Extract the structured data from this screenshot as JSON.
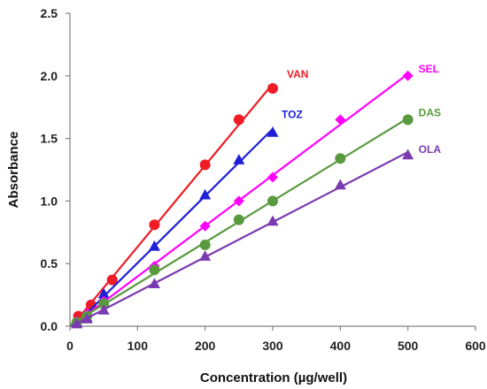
{
  "chart_data": {
    "type": "scatter",
    "title": "",
    "xlabel": "Concentration (µg/well)",
    "ylabel": "Absorbance",
    "xlim": [
      0,
      600
    ],
    "ylim": [
      0,
      2.5
    ],
    "x_ticks": [
      "0",
      "100",
      "200",
      "300",
      "400",
      "500",
      "600"
    ],
    "y_ticks": [
      "0.0",
      "0.5",
      "1.0",
      "1.5",
      "2.0",
      "2.5"
    ],
    "grid": false,
    "legend": "inline labels at end of each series",
    "series": [
      {
        "name": "VAN",
        "color": "#ee1c25",
        "marker": "circle",
        "x": [
          12.5,
          31.25,
          62.5,
          125,
          200,
          250,
          300
        ],
        "y": [
          0.08,
          0.17,
          0.37,
          0.81,
          1.29,
          1.65,
          1.9
        ]
      },
      {
        "name": "TOZ",
        "color": "#1f1fd6",
        "marker": "triangle",
        "x": [
          10,
          25,
          50,
          125,
          200,
          250,
          300
        ],
        "y": [
          0.03,
          0.07,
          0.26,
          0.64,
          1.05,
          1.33,
          1.55
        ]
      },
      {
        "name": "SEL",
        "color": "#ff00ff",
        "marker": "diamond",
        "x": [
          10,
          25,
          50,
          125,
          200,
          250,
          300,
          400,
          500
        ],
        "y": [
          0.04,
          0.1,
          0.2,
          0.48,
          0.8,
          1.0,
          1.19,
          1.65,
          2.0
        ]
      },
      {
        "name": "DAS",
        "color": "#5a9a3e",
        "marker": "circle",
        "x": [
          10,
          25,
          50,
          125,
          200,
          250,
          300,
          400,
          500
        ],
        "y": [
          0.03,
          0.08,
          0.18,
          0.45,
          0.65,
          0.85,
          1.0,
          1.34,
          1.65
        ]
      },
      {
        "name": "OLA",
        "color": "#7a3ab0",
        "marker": "triangle",
        "x": [
          10,
          25,
          50,
          125,
          200,
          300,
          400,
          500
        ],
        "y": [
          0.02,
          0.06,
          0.13,
          0.34,
          0.56,
          0.84,
          1.13,
          1.37
        ]
      }
    ]
  }
}
